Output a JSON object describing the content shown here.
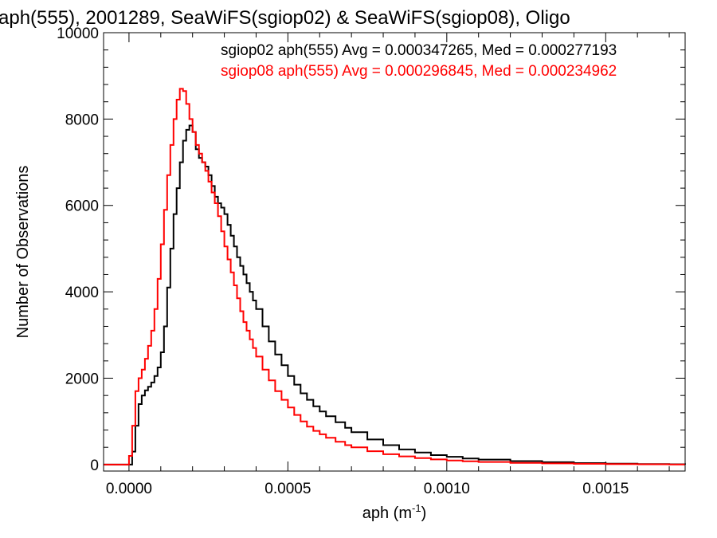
{
  "chart_data": {
    "type": "line",
    "title": "aph(555), 2001289, SeaWiFS(sgiop02) & SeaWiFS(sgiop08), Oligo",
    "xlabel": "aph (m",
    "xlabel_sup": "-1",
    "xlabel_close": ")",
    "ylabel": "Number of Observations",
    "xlim": [
      -8e-05,
      0.00175
    ],
    "ylim": [
      -150,
      10000
    ],
    "xticks": [
      {
        "value": 0.0,
        "label": "0.0000"
      },
      {
        "value": 0.0005,
        "label": "0.0005"
      },
      {
        "value": 0.001,
        "label": "0.0010"
      },
      {
        "value": 0.0015,
        "label": "0.0015"
      }
    ],
    "yticks": [
      {
        "value": 0,
        "label": "0"
      },
      {
        "value": 2000,
        "label": "2000"
      },
      {
        "value": 4000,
        "label": "4000"
      },
      {
        "value": 6000,
        "label": "6000"
      },
      {
        "value": 8000,
        "label": "8000"
      },
      {
        "value": 10000,
        "label": "10000"
      }
    ],
    "grid": false,
    "legend_position": "top-right",
    "series": [
      {
        "name": "sgiop02",
        "legend": "sgiop02 aph(555) Avg = 0.000347265, Med = 0.000277193",
        "color": "#000000",
        "points": [
          [
            -8e-05,
            0
          ],
          [
            0.0,
            0
          ],
          [
            1e-05,
            300
          ],
          [
            2e-05,
            900
          ],
          [
            3e-05,
            1400
          ],
          [
            4e-05,
            1600
          ],
          [
            5e-05,
            1720
          ],
          [
            6e-05,
            1800
          ],
          [
            7e-05,
            1900
          ],
          [
            8e-05,
            2050
          ],
          [
            9e-05,
            2250
          ],
          [
            0.0001,
            2600
          ],
          [
            0.00011,
            3200
          ],
          [
            0.00012,
            4100
          ],
          [
            0.00013,
            5000
          ],
          [
            0.00014,
            5800
          ],
          [
            0.00015,
            6400
          ],
          [
            0.00016,
            7000
          ],
          [
            0.00017,
            7500
          ],
          [
            0.00018,
            7750
          ],
          [
            0.00019,
            7850
          ],
          [
            0.0002,
            7700
          ],
          [
            0.00021,
            7300
          ],
          [
            0.00022,
            7100
          ],
          [
            0.00023,
            7000
          ],
          [
            0.00024,
            6900
          ],
          [
            0.00025,
            6700
          ],
          [
            0.00026,
            6450
          ],
          [
            0.00027,
            6200
          ],
          [
            0.00028,
            6050
          ],
          [
            0.00029,
            5950
          ],
          [
            0.0003,
            5800
          ],
          [
            0.00031,
            5550
          ],
          [
            0.00032,
            5300
          ],
          [
            0.00033,
            5050
          ],
          [
            0.00034,
            4800
          ],
          [
            0.00035,
            4600
          ],
          [
            0.00036,
            4400
          ],
          [
            0.00037,
            4200
          ],
          [
            0.00038,
            4000
          ],
          [
            0.00039,
            3800
          ],
          [
            0.0004,
            3600
          ],
          [
            0.00042,
            3200
          ],
          [
            0.00044,
            2850
          ],
          [
            0.00046,
            2550
          ],
          [
            0.00048,
            2300
          ],
          [
            0.0005,
            2050
          ],
          [
            0.00052,
            1850
          ],
          [
            0.00054,
            1650
          ],
          [
            0.00056,
            1500
          ],
          [
            0.00058,
            1350
          ],
          [
            0.0006,
            1230
          ],
          [
            0.00062,
            1120
          ],
          [
            0.00065,
            980
          ],
          [
            0.00068,
            850
          ],
          [
            0.0007,
            750
          ],
          [
            0.00075,
            580
          ],
          [
            0.0008,
            450
          ],
          [
            0.00085,
            350
          ],
          [
            0.0009,
            280
          ],
          [
            0.00095,
            220
          ],
          [
            0.001,
            180
          ],
          [
            0.00105,
            140
          ],
          [
            0.0011,
            115
          ],
          [
            0.0012,
            80
          ],
          [
            0.0013,
            55
          ],
          [
            0.0014,
            35
          ],
          [
            0.0015,
            22
          ],
          [
            0.0016,
            12
          ],
          [
            0.0017,
            6
          ],
          [
            0.00175,
            4
          ]
        ]
      },
      {
        "name": "sgiop08",
        "legend": "sgiop08 aph(555) Avg = 0.000296845, Med = 0.000234962",
        "color": "#ff0000",
        "points": [
          [
            -8e-05,
            0
          ],
          [
            -1e-05,
            0
          ],
          [
            0.0,
            200
          ],
          [
            1e-05,
            900
          ],
          [
            2e-05,
            1700
          ],
          [
            3e-05,
            2000
          ],
          [
            4e-05,
            2200
          ],
          [
            5e-05,
            2450
          ],
          [
            6e-05,
            2750
          ],
          [
            7e-05,
            3100
          ],
          [
            8e-05,
            3600
          ],
          [
            9e-05,
            4300
          ],
          [
            0.0001,
            5100
          ],
          [
            0.00011,
            5900
          ],
          [
            0.00012,
            6700
          ],
          [
            0.00013,
            7400
          ],
          [
            0.00014,
            8000
          ],
          [
            0.00015,
            8450
          ],
          [
            0.00016,
            8700
          ],
          [
            0.00017,
            8650
          ],
          [
            0.00018,
            8350
          ],
          [
            0.00019,
            8000
          ],
          [
            0.0002,
            7700
          ],
          [
            0.00021,
            7400
          ],
          [
            0.00022,
            7200
          ],
          [
            0.00023,
            7000
          ],
          [
            0.00024,
            6800
          ],
          [
            0.00025,
            6550
          ],
          [
            0.00026,
            6300
          ],
          [
            0.00027,
            6050
          ],
          [
            0.00028,
            5750
          ],
          [
            0.00029,
            5400
          ],
          [
            0.0003,
            5050
          ],
          [
            0.00031,
            4750
          ],
          [
            0.00032,
            4450
          ],
          [
            0.00033,
            4150
          ],
          [
            0.00034,
            3850
          ],
          [
            0.00035,
            3550
          ],
          [
            0.00036,
            3300
          ],
          [
            0.00037,
            3100
          ],
          [
            0.00038,
            2900
          ],
          [
            0.00039,
            2700
          ],
          [
            0.0004,
            2500
          ],
          [
            0.00042,
            2200
          ],
          [
            0.00044,
            1950
          ],
          [
            0.00046,
            1700
          ],
          [
            0.00048,
            1500
          ],
          [
            0.0005,
            1320
          ],
          [
            0.00052,
            1150
          ],
          [
            0.00054,
            1000
          ],
          [
            0.00056,
            880
          ],
          [
            0.00058,
            780
          ],
          [
            0.0006,
            700
          ],
          [
            0.00062,
            620
          ],
          [
            0.00065,
            530
          ],
          [
            0.00068,
            450
          ],
          [
            0.0007,
            400
          ],
          [
            0.00075,
            310
          ],
          [
            0.0008,
            240
          ],
          [
            0.00085,
            190
          ],
          [
            0.0009,
            150
          ],
          [
            0.00095,
            120
          ],
          [
            0.001,
            95
          ],
          [
            0.00105,
            75
          ],
          [
            0.0011,
            60
          ],
          [
            0.0012,
            40
          ],
          [
            0.0013,
            28
          ],
          [
            0.0014,
            18
          ],
          [
            0.0015,
            12
          ],
          [
            0.0016,
            7
          ],
          [
            0.0017,
            4
          ],
          [
            0.00175,
            3
          ]
        ]
      }
    ]
  }
}
